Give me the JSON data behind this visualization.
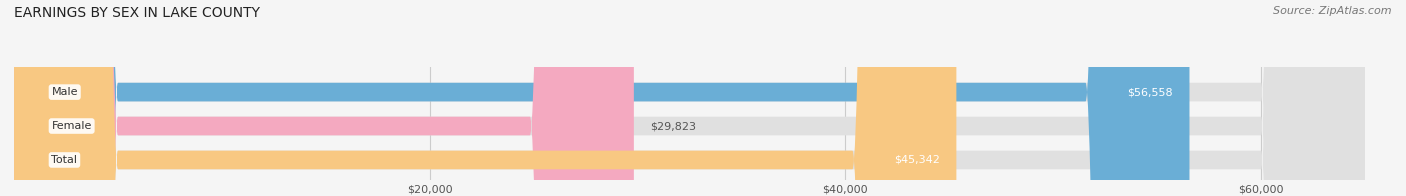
{
  "title": "EARNINGS BY SEX IN LAKE COUNTY",
  "source": "Source: ZipAtlas.com",
  "categories": [
    "Male",
    "Female",
    "Total"
  ],
  "values": [
    56558,
    29823,
    45342
  ],
  "bar_colors": [
    "#6aaed6",
    "#f4a9c0",
    "#f8c882"
  ],
  "bar_bg_color": "#e0e0e0",
  "label_texts": [
    "$56,558",
    "$29,823",
    "$45,342"
  ],
  "xmin": 0,
  "xmax": 65000,
  "xticks": [
    20000,
    40000,
    60000
  ],
  "xticklabels": [
    "$20,000",
    "$40,000",
    "$60,000"
  ],
  "background_color": "#f5f5f5",
  "title_fontsize": 10,
  "source_fontsize": 8,
  "label_fontsize": 8,
  "cat_fontsize": 8,
  "bar_height": 0.55,
  "value_label_inside_color": "#ffffff",
  "value_label_outside_color": "#555555"
}
